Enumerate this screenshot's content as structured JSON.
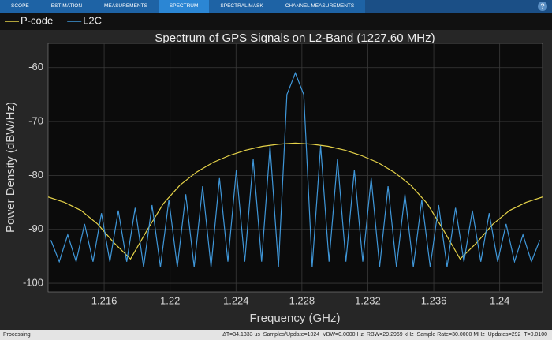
{
  "toolbar": {
    "tabs": [
      "SCOPE",
      "ESTIMATION",
      "MEASUREMENTS",
      "SPECTRUM",
      "SPECTRAL MASK",
      "CHANNEL MEASUREMENTS"
    ],
    "selected": 3,
    "help": "?"
  },
  "chart_data": {
    "type": "line",
    "title": "Spectrum of GPS Signals on L2-Band (1227.60 MHz)",
    "x_label": "Frequency (GHz)",
    "y_label": "Power Density (dBW/Hz)",
    "xlim": [
      1.2126,
      1.2426
    ],
    "ylim": [
      -101.6,
      -55.5
    ],
    "xticks": [
      1.216,
      1.22,
      1.224,
      1.228,
      1.232,
      1.236,
      1.24
    ],
    "yticks": [
      -100,
      -90,
      -80,
      -70,
      -60
    ],
    "grid": true,
    "series": [
      {
        "name": "P-code",
        "color": "#e6d349",
        "x": [
          1.2126,
          1.2136,
          1.2146,
          1.2156,
          1.2166,
          1.2176,
          1.2186,
          1.2196,
          1.2206,
          1.2216,
          1.2226,
          1.2236,
          1.2246,
          1.2256,
          1.2266,
          1.2276,
          1.2286,
          1.2296,
          1.2306,
          1.2316,
          1.2326,
          1.2336,
          1.2346,
          1.2356,
          1.2366,
          1.2376,
          1.2386,
          1.2396,
          1.2406,
          1.2416,
          1.2426
        ],
        "values": [
          -84,
          -85,
          -86.5,
          -89,
          -92.5,
          -95.5,
          -90.2,
          -85.2,
          -81.8,
          -79.4,
          -77.6,
          -76.3,
          -75.3,
          -74.6,
          -74.2,
          -74,
          -74.2,
          -74.6,
          -75.3,
          -76.3,
          -77.6,
          -79.4,
          -81.8,
          -85.2,
          -90.2,
          -95.5,
          -92.5,
          -89,
          -86.5,
          -85,
          -84
        ]
      },
      {
        "name": "L2C",
        "color": "#3f97d9",
        "x": [
          1.212767,
          1.213278,
          1.21379,
          1.214301,
          1.214813,
          1.215324,
          1.215836,
          1.216347,
          1.216859,
          1.21737,
          1.217882,
          1.218393,
          1.218905,
          1.219416,
          1.219928,
          1.220439,
          1.220951,
          1.221462,
          1.221974,
          1.222485,
          1.222997,
          1.223508,
          1.22402,
          1.224531,
          1.225043,
          1.225554,
          1.226066,
          1.226577,
          1.227089,
          1.2276,
          1.228112,
          1.228623,
          1.229135,
          1.229646,
          1.230158,
          1.230669,
          1.231181,
          1.231692,
          1.232204,
          1.232715,
          1.233227,
          1.233738,
          1.23425,
          1.234761,
          1.235273,
          1.235784,
          1.236296,
          1.236807,
          1.237319,
          1.23783,
          1.238342,
          1.238853,
          1.239365,
          1.239876,
          1.240388,
          1.240899,
          1.241411,
          1.241922,
          1.242434
        ],
        "values": [
          -92,
          -96,
          -91,
          -96,
          -89,
          -96,
          -87,
          -96,
          -86.5,
          -96,
          -86,
          -97,
          -85.5,
          -97,
          -84.5,
          -97,
          -83.5,
          -97,
          -82,
          -97,
          -80.5,
          -96,
          -79,
          -96,
          -77,
          -96,
          -74.5,
          -97,
          -65,
          -61,
          -65,
          -97,
          -74.5,
          -96,
          -77,
          -96,
          -79,
          -96,
          -80.5,
          -97,
          -82,
          -97,
          -83.5,
          -97,
          -84.5,
          -97,
          -85.5,
          -97,
          -86,
          -96,
          -86.5,
          -96,
          -87,
          -96,
          -89,
          -96,
          -91,
          -96,
          -92
        ]
      }
    ]
  },
  "status": {
    "left": "Processing",
    "right": "ΔT=34.1333 us  Samples/Update=1024  VBW=0.0000 Hz  RBW=29.2969 kHz  Sample Rate=30.0000 MHz  Updates=292  T=0.0100"
  }
}
